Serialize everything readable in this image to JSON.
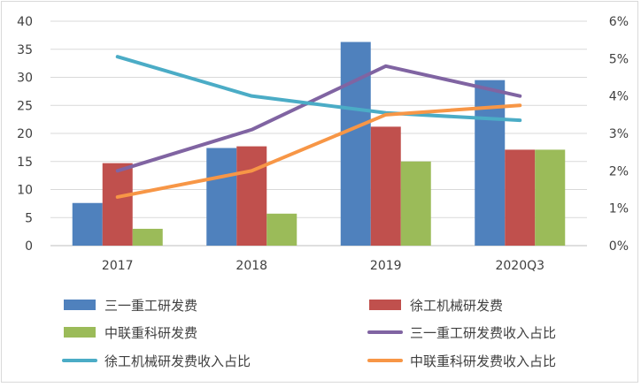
{
  "chart_data": {
    "type": "bar",
    "categories": [
      "2017",
      "2018",
      "2019",
      "2020Q3"
    ],
    "left_axis": {
      "ylim": [
        0,
        40
      ],
      "ticks": [
        "0",
        "5",
        "10",
        "15",
        "20",
        "25",
        "30",
        "35",
        "40"
      ]
    },
    "right_axis": {
      "ylim": [
        0,
        6
      ],
      "ticks": [
        "0%",
        "1%",
        "2%",
        "3%",
        "4%",
        "5%",
        "6%"
      ]
    },
    "bar_series": [
      {
        "name": "三一重工研发费",
        "color": "#4f81bd",
        "values": [
          7.6,
          17.4,
          36.3,
          29.5
        ]
      },
      {
        "name": "徐工机械研发费",
        "color": "#c0504d",
        "values": [
          14.7,
          17.7,
          21.2,
          17.1
        ]
      },
      {
        "name": "中联重科研发费",
        "color": "#9bbb59",
        "values": [
          3.0,
          5.7,
          15.0,
          17.1
        ]
      }
    ],
    "line_series": [
      {
        "name": "三一重工研发费收入占比",
        "color": "#8064a2",
        "values": [
          2.0,
          3.1,
          4.8,
          4.0
        ]
      },
      {
        "name": "徐工机械研发费收入占比",
        "color": "#4bacc6",
        "values": [
          5.05,
          4.0,
          3.55,
          3.35
        ]
      },
      {
        "name": "中联重科研发费收入占比",
        "color": "#f79646",
        "values": [
          1.3,
          2.0,
          3.5,
          3.75
        ]
      }
    ],
    "legend_position": "bottom",
    "grid": true
  }
}
